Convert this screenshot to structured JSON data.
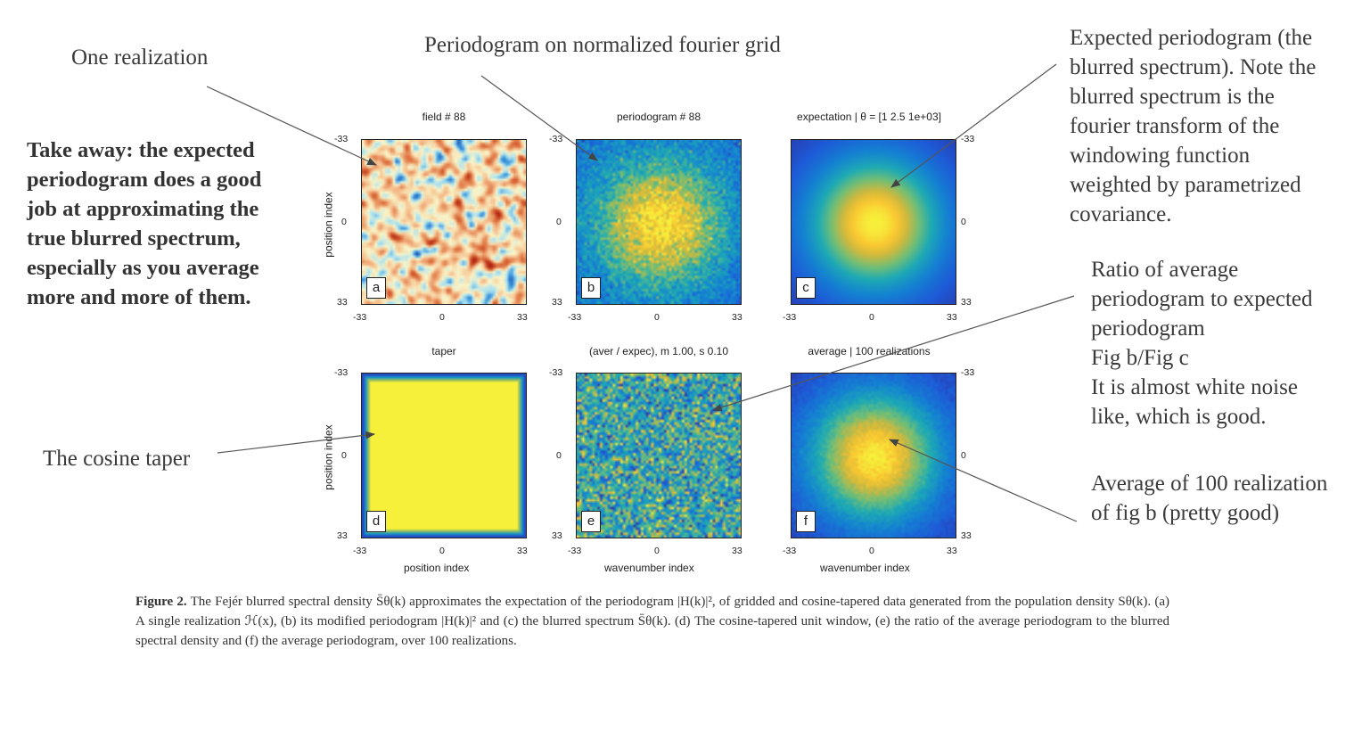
{
  "annotations": {
    "one_realization": "One realization",
    "periodogram_grid": "Periodogram on normalized fourier grid",
    "expected_lines": [
      "Expected periodogram (the",
      "blurred spectrum). Note the",
      "blurred spectrum is the",
      "fourier transform of the",
      "windowing function",
      "weighted by parametrized",
      "covariance."
    ],
    "ratio_lines": [
      "Ratio of average",
      "periodogram to expected",
      "periodogram",
      "Fig b/Fig c",
      "It is almost white noise",
      "like, which is good."
    ],
    "average_lines": [
      "Average of 100 realization",
      "of fig b (pretty good)"
    ],
    "cosine_taper": "The cosine taper",
    "takeaway_lines": [
      "Take away: the expected",
      "periodogram does a good",
      "job at approximating the",
      "true blurred spectrum,",
      "especially as you average",
      "more and more of them."
    ]
  },
  "figure": {
    "panels": [
      {
        "id": "a",
        "title": "field # 88",
        "kind": "field"
      },
      {
        "id": "b",
        "title": "periodogram # 88",
        "kind": "periodogram"
      },
      {
        "id": "c",
        "title": "expectation |   θ = [1 2.5 1e+03]",
        "kind": "expectation"
      },
      {
        "id": "d",
        "title": "taper",
        "kind": "taper"
      },
      {
        "id": "e",
        "title": "(aver / expec), m 1.00, s 0.10",
        "kind": "ratio"
      },
      {
        "id": "f",
        "title": "average | 100 realizations",
        "kind": "average"
      }
    ],
    "ticks": {
      "low": "-33",
      "mid": "0",
      "high": "33"
    },
    "labels": {
      "position_index": "position index",
      "wavenumber_index": "wavenumber index"
    }
  },
  "caption": {
    "label": "Figure 2.",
    "text": "The Fejér blurred spectral density S̄θ(k) approximates the expectation of the periodogram |H(k)|², of gridded and cosine-tapered data generated from the population density Sθ(k). (a) A single realization ℋ(x), (b) its modified periodogram |H(k)|² and (c) the blurred spectrum S̄θ(k). (d) The cosine-tapered unit window, (e) the ratio of the average periodogram to the blurred spectral density and (f) the average periodogram, over 100 realizations."
  },
  "colors": {
    "field_blue": "#1540a8",
    "field_red": "#c83a1c",
    "parula_low": "#2c3aa8",
    "parula_high": "#f6f23a",
    "annotation_text": "#3a3a3a"
  }
}
